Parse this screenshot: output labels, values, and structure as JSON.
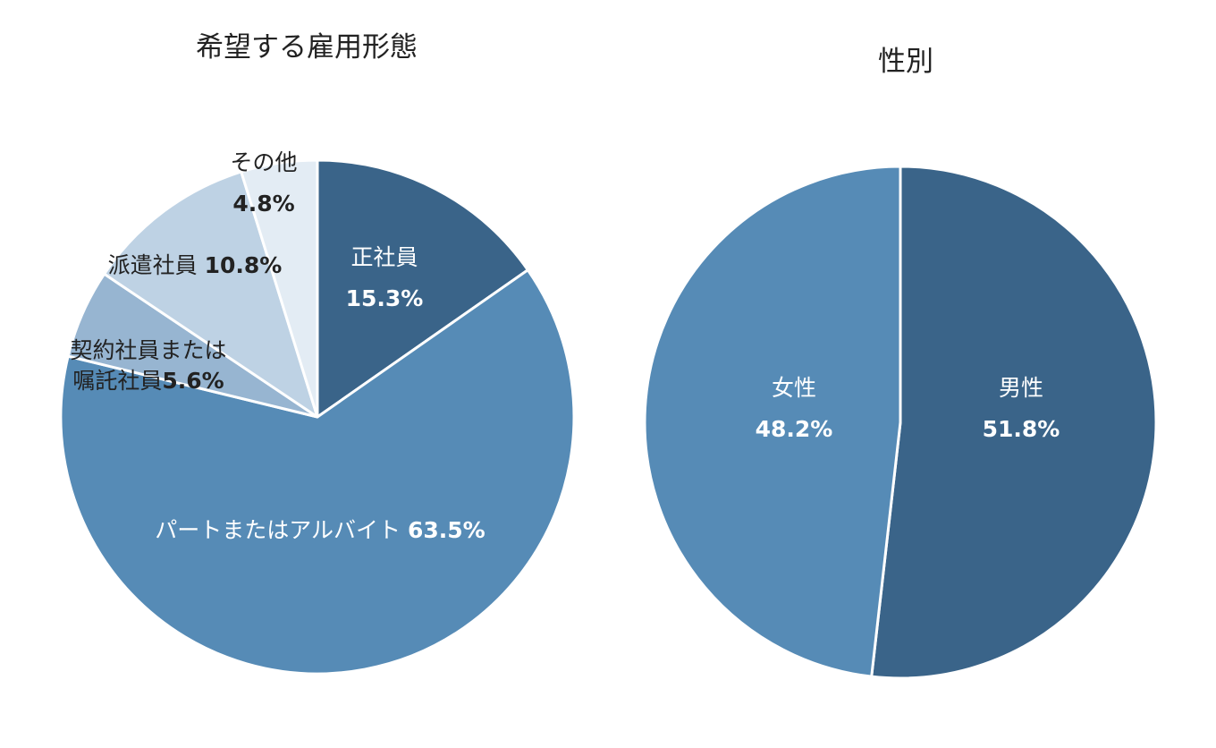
{
  "chart_data": [
    {
      "type": "pie",
      "title": "希望する雇用形態",
      "categories": [
        "正社員",
        "パートまたはアルバイト",
        "契約社員または嘱託社員",
        "派遣社員",
        "その他"
      ],
      "values": [
        15.3,
        63.5,
        5.6,
        10.8,
        4.8
      ],
      "unit": "%",
      "labels": [
        {
          "lines": [
            "正社員"
          ],
          "value_text": "15.3%"
        },
        {
          "lines": [
            "パートまたはアルバイト"
          ],
          "value_text": "63.5%"
        },
        {
          "lines": [
            "契約社員または",
            "嘱託社員"
          ],
          "value_text": "5.6%"
        },
        {
          "lines": [
            "派遣社員"
          ],
          "value_text": "10.8%"
        },
        {
          "lines": [
            "その他"
          ],
          "value_text": "4.8%"
        }
      ],
      "colors": [
        "#3a6489",
        "#568bb6",
        "#97b5d1",
        "#bed2e4",
        "#e3ecf4"
      ]
    },
    {
      "type": "pie",
      "title": "性別",
      "categories": [
        "男性",
        "女性"
      ],
      "values": [
        51.8,
        48.2
      ],
      "unit": "%",
      "labels": [
        {
          "lines": [
            "男性"
          ],
          "value_text": "51.8%"
        },
        {
          "lines": [
            "女性"
          ],
          "value_text": "48.2%"
        }
      ],
      "colors": [
        "#3a6489",
        "#568bb6"
      ]
    }
  ]
}
